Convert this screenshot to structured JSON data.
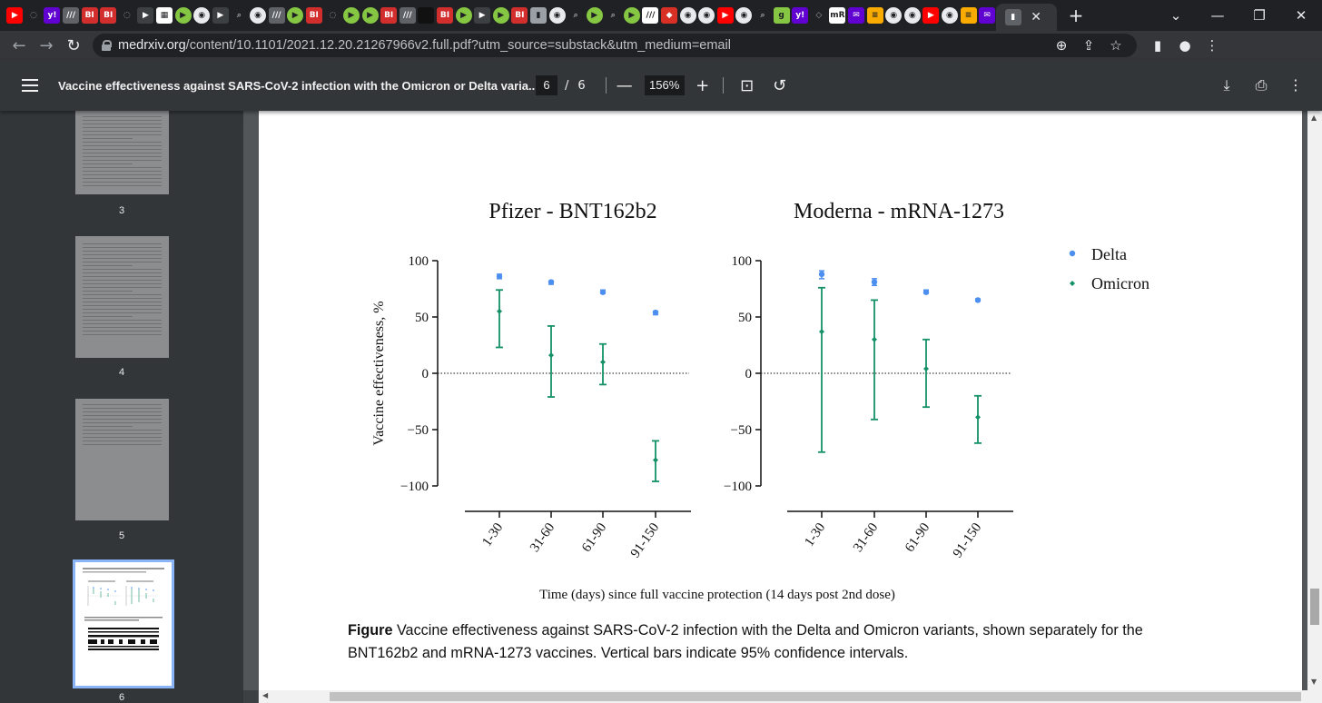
{
  "browser": {
    "tab_favicons": [
      {
        "name": "youtube",
        "color": "#ff0000",
        "glyph": "▶"
      },
      {
        "name": "shield",
        "color": "#202124",
        "glyph": "◌"
      },
      {
        "name": "yahoo",
        "color": "#6001d2",
        "glyph": "y!"
      },
      {
        "name": "news",
        "color": "#5f6368",
        "glyph": "///"
      },
      {
        "name": "bi",
        "color": "#d22e2e",
        "glyph": "BI"
      },
      {
        "name": "bi",
        "color": "#d22e2e",
        "glyph": "BI"
      },
      {
        "name": "shield",
        "color": "#202124",
        "glyph": "◌"
      },
      {
        "name": "arrow",
        "color": "#3c4043",
        "glyph": "▶"
      },
      {
        "name": "grid",
        "color": "#ffffff",
        "glyph": "▦"
      },
      {
        "name": "rumble",
        "color": "#85c742",
        "glyph": "▶"
      },
      {
        "name": "globe",
        "color": "#e8eaed",
        "glyph": "◉"
      },
      {
        "name": "arrow",
        "color": "#3c4043",
        "glyph": "▶"
      },
      {
        "name": "search",
        "color": "#202124",
        "glyph": "⌕"
      },
      {
        "name": "globe",
        "color": "#e8eaed",
        "glyph": "◉"
      },
      {
        "name": "news",
        "color": "#5f6368",
        "glyph": "///"
      },
      {
        "name": "rumble",
        "color": "#85c742",
        "glyph": "▶"
      },
      {
        "name": "bi",
        "color": "#d22e2e",
        "glyph": "BI"
      },
      {
        "name": "shield",
        "color": "#202124",
        "glyph": "◌"
      },
      {
        "name": "rumble",
        "color": "#85c742",
        "glyph": "▶"
      },
      {
        "name": "rumble",
        "color": "#85c742",
        "glyph": "▶"
      },
      {
        "name": "bi",
        "color": "#d22e2e",
        "glyph": "BI"
      },
      {
        "name": "news",
        "color": "#5f6368",
        "glyph": "///"
      },
      {
        "name": "dark",
        "color": "#111111",
        "glyph": ""
      },
      {
        "name": "bi",
        "color": "#d22e2e",
        "glyph": "BI"
      },
      {
        "name": "rumble",
        "color": "#85c742",
        "glyph": "▶"
      },
      {
        "name": "arrow",
        "color": "#3c4043",
        "glyph": "▶"
      },
      {
        "name": "rumble",
        "color": "#85c742",
        "glyph": "▶"
      },
      {
        "name": "bi",
        "color": "#d22e2e",
        "glyph": "BI"
      },
      {
        "name": "mic",
        "color": "#9aa0a6",
        "glyph": "▮"
      },
      {
        "name": "globe",
        "color": "#e8eaed",
        "glyph": "◉"
      },
      {
        "name": "search",
        "color": "#202124",
        "glyph": "⌕"
      },
      {
        "name": "rumble",
        "color": "#85c742",
        "glyph": "▶"
      },
      {
        "name": "search",
        "color": "#202124",
        "glyph": "⌕"
      },
      {
        "name": "rumble",
        "color": "#85c742",
        "glyph": "▶"
      },
      {
        "name": "news",
        "color": "#ffffff",
        "glyph": "///"
      },
      {
        "name": "pin",
        "color": "#d93025",
        "glyph": "◆"
      },
      {
        "name": "globe",
        "color": "#e8eaed",
        "glyph": "◉"
      },
      {
        "name": "globe",
        "color": "#e8eaed",
        "glyph": "◉"
      },
      {
        "name": "youtube",
        "color": "#ff0000",
        "glyph": "▶"
      },
      {
        "name": "globe",
        "color": "#e8eaed",
        "glyph": "◉"
      },
      {
        "name": "search",
        "color": "#202124",
        "glyph": "⌕"
      },
      {
        "name": "g",
        "color": "#85c742",
        "glyph": "g"
      },
      {
        "name": "yahoo",
        "color": "#6001d2",
        "glyph": "y!"
      },
      {
        "name": "diamond",
        "color": "#202124",
        "glyph": "◇"
      },
      {
        "name": "mr",
        "color": "#ffffff",
        "glyph": "mR"
      },
      {
        "name": "mail",
        "color": "#6001d2",
        "glyph": "✉"
      },
      {
        "name": "bars",
        "color": "#f9ab00",
        "glyph": "≡"
      },
      {
        "name": "globe",
        "color": "#e8eaed",
        "glyph": "◉"
      },
      {
        "name": "globe",
        "color": "#e8eaed",
        "glyph": "◉"
      },
      {
        "name": "youtube",
        "color": "#ff0000",
        "glyph": "▶"
      },
      {
        "name": "globe",
        "color": "#e8eaed",
        "glyph": "◉"
      },
      {
        "name": "bars",
        "color": "#f9ab00",
        "glyph": "≡"
      },
      {
        "name": "mail",
        "color": "#6001d2",
        "glyph": "✉"
      }
    ],
    "close_tab_glyph": "✕",
    "new_tab_glyph": "+",
    "url_host": "medrxiv.org",
    "url_path": "/content/10.1101/2021.12.20.21267966v2.full.pdf?utm_source=substack&utm_medium=email"
  },
  "pdf": {
    "title": "Vaccine effectiveness against SARS-CoV-2 infection with the Omicron or Delta varia...",
    "current_page": "6",
    "page_separator": "/",
    "total_pages": "6",
    "zoom": "156%",
    "thumbnails": [
      {
        "number": "3"
      },
      {
        "number": "4"
      },
      {
        "number": "5"
      },
      {
        "number": "6"
      }
    ]
  },
  "chart_data": {
    "type": "scatter",
    "subtitle_left": "Pfizer - BNT162b2",
    "subtitle_right": "Moderna - mRNA-1273",
    "ylabel": "Vaccine effectiveness, %",
    "xlabel": "Time (days) since full vaccine protection (14 days post 2nd dose)",
    "categories": [
      "1-30",
      "31-60",
      "61-90",
      "91-150"
    ],
    "yticks": [
      "100",
      "50",
      "0",
      "-50",
      "-100"
    ],
    "ylim": [
      -100,
      100
    ],
    "legend": [
      "Delta",
      "Omicron"
    ],
    "colors": {
      "Delta": "#4c8ff0",
      "Omicron": "#159168"
    },
    "panels": [
      {
        "name": "Pfizer - BNT162b2",
        "delta": [
          {
            "y": 86,
            "lo": 84,
            "hi": 88
          },
          {
            "y": 81,
            "lo": 79,
            "hi": 82
          },
          {
            "y": 72,
            "lo": 71,
            "hi": 74
          },
          {
            "y": 54,
            "lo": 52,
            "hi": 55
          }
        ],
        "omicron": [
          {
            "y": 55,
            "lo": 23,
            "hi": 74
          },
          {
            "y": 16,
            "lo": -21,
            "hi": 42
          },
          {
            "y": 10,
            "lo": -10,
            "hi": 26
          },
          {
            "y": -77,
            "lo": -96,
            "hi": -60
          }
        ]
      },
      {
        "name": "Moderna - mRNA-1273",
        "delta": [
          {
            "y": 88,
            "lo": 84,
            "hi": 91
          },
          {
            "y": 81,
            "lo": 78,
            "hi": 84
          },
          {
            "y": 72,
            "lo": 71,
            "hi": 74
          },
          {
            "y": 65,
            "lo": 64,
            "hi": 66
          }
        ],
        "omicron": [
          {
            "y": 37,
            "lo": -70,
            "hi": 76
          },
          {
            "y": 30,
            "lo": -41,
            "hi": 65
          },
          {
            "y": 4,
            "lo": -30,
            "hi": 30
          },
          {
            "y": -39,
            "lo": -62,
            "hi": -20
          }
        ]
      }
    ]
  },
  "caption": {
    "label": "Figure",
    "text": " Vaccine effectiveness against SARS-CoV-2 infection with the Delta and Omicron variants, shown separately for the BNT162b2 and mRNA-1273 vaccines. Vertical bars indicate 95% confidence intervals."
  }
}
